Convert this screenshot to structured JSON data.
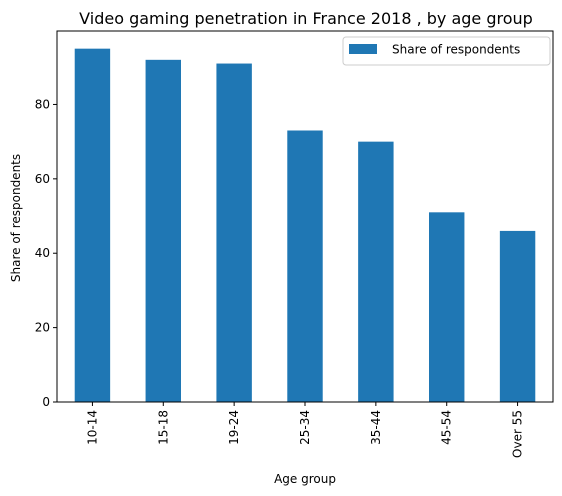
{
  "chart_data": {
    "type": "bar",
    "title": "Video gaming penetration in France 2018 , by age group",
    "xlabel": "Age group",
    "ylabel": "Share of respondents",
    "categories": [
      "10-14",
      "15-18",
      "19-24",
      "25-34",
      "35-44",
      "45-54",
      "Over 55"
    ],
    "series": [
      {
        "name": "Share of respondents",
        "values": [
          95,
          92,
          91,
          73,
          70,
          51,
          46
        ],
        "color": "#1f77b4"
      }
    ],
    "ylim": [
      0,
      99.75
    ],
    "yticks": [
      0,
      20,
      40,
      60,
      80
    ],
    "grid": false,
    "legend_position": "top-right"
  }
}
